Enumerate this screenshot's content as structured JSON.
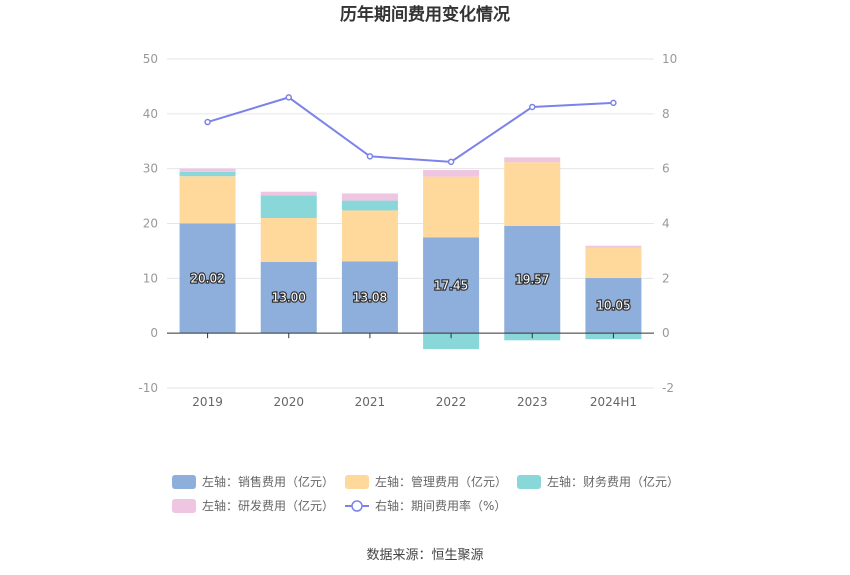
{
  "chart_data": {
    "type": "bar",
    "title": "历年期间费用变化情况",
    "categories": [
      "2019",
      "2020",
      "2021",
      "2022",
      "2023",
      "2024H1"
    ],
    "y_left": {
      "min": -10,
      "max": 50,
      "ticks": [
        -10,
        0,
        10,
        20,
        30,
        40,
        50
      ]
    },
    "y_right": {
      "min": -2,
      "max": 10,
      "ticks": [
        -2,
        0,
        2,
        4,
        6,
        8,
        10
      ]
    },
    "series": [
      {
        "name": "左轴：销售费用（亿元）",
        "kind": "bar",
        "axis": "left",
        "color": "#8eaedb",
        "values": [
          20.02,
          13.0,
          13.08,
          17.45,
          19.57,
          10.05
        ],
        "labels": [
          "20.02",
          "13.00",
          "13.08",
          "17.45",
          "19.57",
          "10.05"
        ]
      },
      {
        "name": "左轴：管理费用（亿元）",
        "kind": "bar",
        "axis": "left",
        "color": "#ffd89b",
        "values": [
          8.6,
          8.0,
          9.3,
          11.1,
          11.6,
          5.5
        ]
      },
      {
        "name": "左轴：财务费用（亿元）",
        "kind": "bar",
        "axis": "left",
        "color": "#89d7d9",
        "values": [
          0.8,
          4.1,
          1.8,
          -2.9,
          -1.3,
          -1.1
        ]
      },
      {
        "name": "左轴：研发费用（亿元）",
        "kind": "bar",
        "axis": "left",
        "color": "#eec6e2",
        "values": [
          0.6,
          0.7,
          1.3,
          1.2,
          0.9,
          0.4
        ]
      },
      {
        "name": "右轴：期间费用率（%）",
        "kind": "line",
        "axis": "right",
        "color": "#7b83ea",
        "values": [
          7.7,
          8.6,
          6.45,
          6.25,
          8.25,
          8.4
        ]
      }
    ],
    "legend_position": "bottom",
    "grid": true
  },
  "source": "数据来源：恒生聚源"
}
